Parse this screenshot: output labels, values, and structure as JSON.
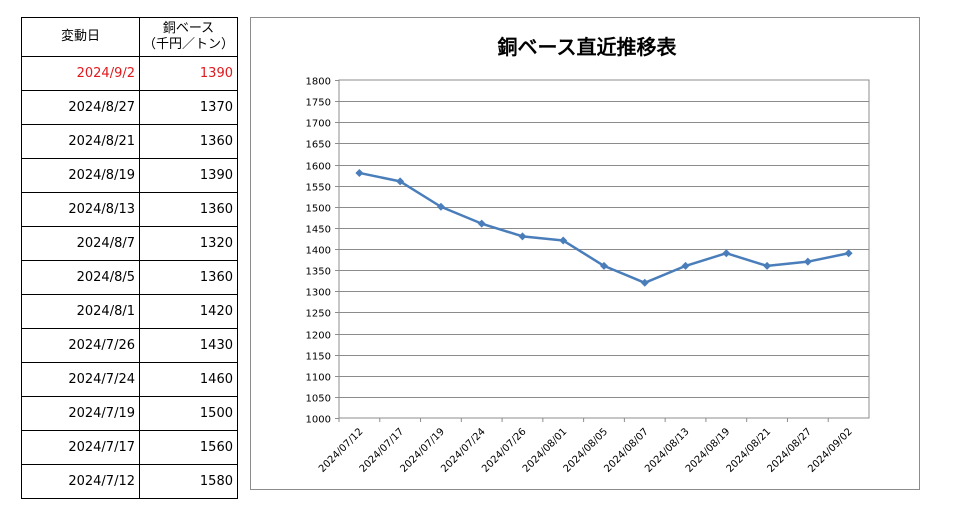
{
  "table": {
    "header_date": "変動日",
    "header_value_line1": "銅ベース",
    "header_value_line2": "（千円／トン）",
    "rows": [
      {
        "date": "2024/9/2",
        "value": "1390",
        "highlight": true
      },
      {
        "date": "2024/8/27",
        "value": "1370"
      },
      {
        "date": "2024/8/21",
        "value": "1360"
      },
      {
        "date": "2024/8/19",
        "value": "1390"
      },
      {
        "date": "2024/8/13",
        "value": "1360"
      },
      {
        "date": "2024/8/7",
        "value": "1320"
      },
      {
        "date": "2024/8/5",
        "value": "1360"
      },
      {
        "date": "2024/8/1",
        "value": "1420"
      },
      {
        "date": "2024/7/26",
        "value": "1430"
      },
      {
        "date": "2024/7/24",
        "value": "1460"
      },
      {
        "date": "2024/7/19",
        "value": "1500"
      },
      {
        "date": "2024/7/17",
        "value": "1560"
      },
      {
        "date": "2024/7/12",
        "value": "1580"
      }
    ],
    "highlight_color": "#e0191c"
  },
  "chart_data": {
    "type": "line",
    "title": "銅ベース直近推移表",
    "categories": [
      "2024/07/12",
      "2024/07/17",
      "2024/07/19",
      "2024/07/24",
      "2024/07/26",
      "2024/08/01",
      "2024/08/05",
      "2024/08/07",
      "2024/08/13",
      "2024/08/19",
      "2024/08/21",
      "2024/08/27",
      "2024/09/02"
    ],
    "series": [
      {
        "values": [
          1580,
          1560,
          1500,
          1460,
          1430,
          1420,
          1360,
          1320,
          1360,
          1390,
          1360,
          1370,
          1390
        ]
      }
    ],
    "ylim": [
      1000,
      1800
    ],
    "ytick_step": 50,
    "grid": true,
    "line_color": "#4a7ebb"
  }
}
